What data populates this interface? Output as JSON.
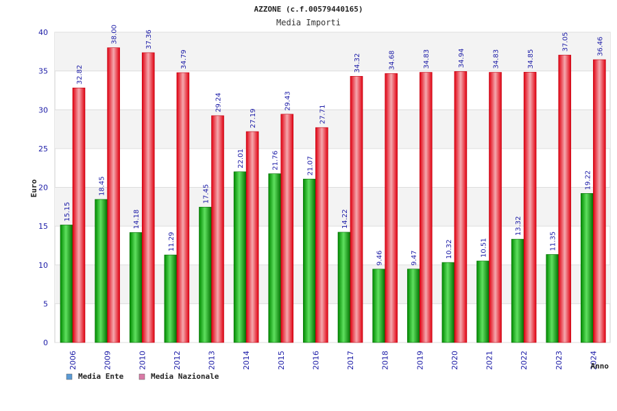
{
  "chart_data": {
    "type": "bar",
    "title": "AZZONE (c.f.00579440165)",
    "subtitle": "Media Importi",
    "ylabel": "Euro",
    "xlabel": "Anno",
    "ylim": [
      0,
      40
    ],
    "yticks": [
      0,
      5,
      10,
      15,
      20,
      25,
      30,
      35,
      40
    ],
    "grid": true,
    "legend_position": "bottom-left",
    "categories": [
      "2006",
      "2009",
      "2010",
      "2012",
      "2013",
      "2014",
      "2015",
      "2016",
      "2017",
      "2018",
      "2019",
      "2020",
      "2021",
      "2022",
      "2023",
      "2024"
    ],
    "series": [
      {
        "name": "Media Ente",
        "color": "#00a000",
        "legend_color": "#5b9bd5",
        "values": [
          15.15,
          18.45,
          14.18,
          11.29,
          17.45,
          22.01,
          21.76,
          21.07,
          14.22,
          9.46,
          9.47,
          10.32,
          10.51,
          13.32,
          11.35,
          19.22
        ],
        "labels": [
          "15.15",
          "18.45",
          "14.18",
          "11.29",
          "17.45",
          "22.01",
          "21.76",
          "21.07",
          "14.22",
          "9.46",
          "9.47",
          "10.32",
          "10.51",
          "13.32",
          "11.35",
          "19.22"
        ]
      },
      {
        "name": "Media Nazionale",
        "color": "#e01020",
        "legend_color": "#d97aa6",
        "values": [
          32.82,
          38.0,
          37.36,
          34.79,
          29.24,
          27.19,
          29.43,
          27.71,
          34.32,
          34.68,
          34.83,
          34.94,
          34.83,
          34.85,
          37.05,
          36.46
        ],
        "labels": [
          "32.82",
          "38.00",
          "37.36",
          "34.79",
          "29.24",
          "27.19",
          "29.43",
          "27.71",
          "34.32",
          "34.68",
          "34.83",
          "34.94",
          "34.83",
          "34.85",
          "37.05",
          "36.46"
        ]
      }
    ]
  }
}
